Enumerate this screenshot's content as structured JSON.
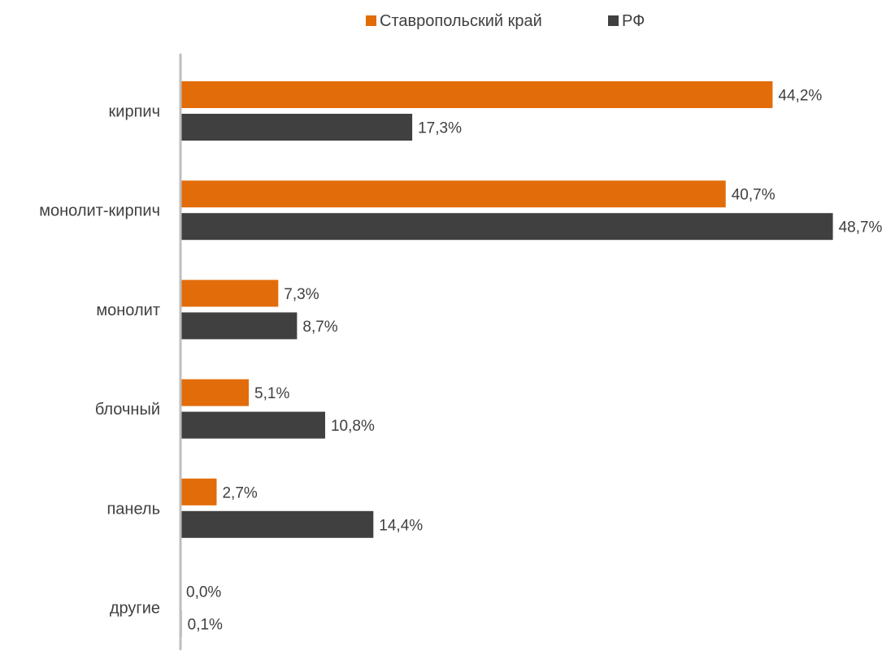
{
  "chart_data": {
    "type": "bar",
    "orientation": "horizontal",
    "categories": [
      "кирпич",
      "монолит-кирпич",
      "монолит",
      "блочный",
      "панель",
      "другие"
    ],
    "series": [
      {
        "name": "Ставропольский край",
        "color": "#E36C0A",
        "values": [
          44.2,
          40.7,
          7.3,
          5.1,
          2.7,
          0.0
        ],
        "labels": [
          "44,2%",
          "40,7%",
          "7,3%",
          "5,1%",
          "2,7%",
          "0,0%"
        ]
      },
      {
        "name": "РФ",
        "color": "#404040",
        "values": [
          17.3,
          48.7,
          8.7,
          10.8,
          14.4,
          0.1
        ],
        "labels": [
          "17,3%",
          "48,7%",
          "8,7%",
          "10,8%",
          "14,4%",
          "0,1%"
        ]
      }
    ],
    "xlim": [
      0,
      49
    ],
    "grid": false,
    "legend_position": "top-center",
    "axis_color": "#BFBFBF"
  }
}
